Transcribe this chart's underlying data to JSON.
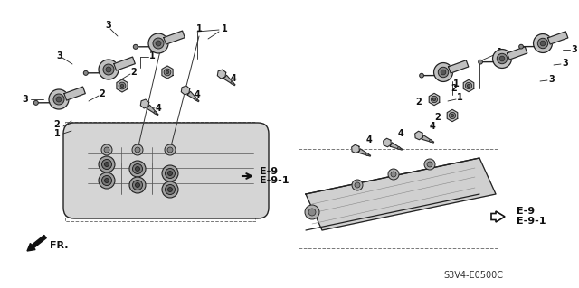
{
  "bg_color": "#ffffff",
  "line_color": "#2a2a2a",
  "part_code": "S3V4-E0500C",
  "fr_label": "FR.",
  "e9_labels": [
    "E-9",
    "E-9-1"
  ],
  "label_fontsize": 7,
  "label_fontweight": "bold",
  "coil_fc": "#c8c8c8",
  "coil_ec": "#222222",
  "plug_fc": "#b0b0b0",
  "hex_fc": "#bbbbbb",
  "cover_fc": "#d0d0d0",
  "cover_ec": "#222222",
  "dashed_color": "#777777"
}
